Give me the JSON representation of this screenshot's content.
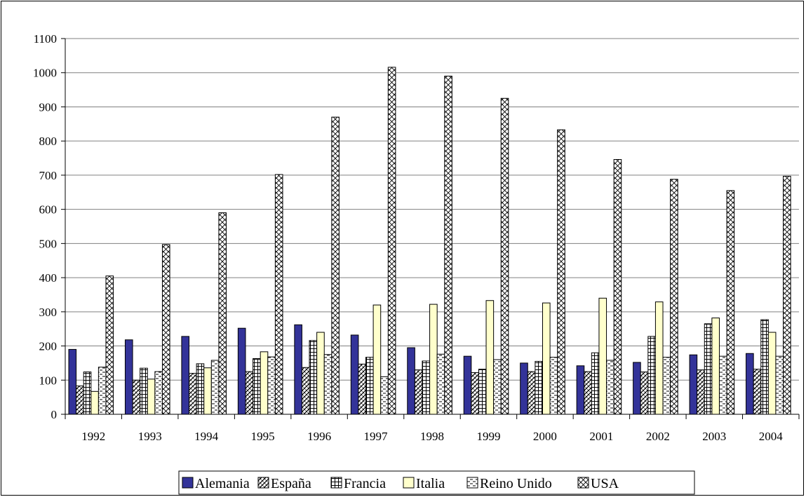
{
  "chart_data": {
    "type": "bar",
    "title": "",
    "xlabel": "",
    "ylabel": "",
    "ylim": [
      0,
      1100
    ],
    "yticks": [
      0,
      100,
      200,
      300,
      400,
      500,
      600,
      700,
      800,
      900,
      1000,
      1100
    ],
    "grid": "horizontal",
    "legend_position": "bottom",
    "categories": [
      "1992",
      "1993",
      "1994",
      "1995",
      "1996",
      "1997",
      "1998",
      "1999",
      "2000",
      "2001",
      "2002",
      "2003",
      "2004"
    ],
    "series": [
      {
        "name": "Alemania",
        "color": "#333399",
        "pattern": "solid",
        "values": [
          190,
          218,
          228,
          252,
          262,
          232,
          195,
          170,
          150,
          142,
          152,
          174,
          178
        ]
      },
      {
        "name": "España",
        "color": "#ffffff",
        "pattern": "dense-hatch",
        "values": [
          83,
          100,
          120,
          125,
          137,
          147,
          130,
          122,
          125,
          125,
          124,
          130,
          132
        ]
      },
      {
        "name": "Francia",
        "color": "#ffffff",
        "pattern": "grid",
        "values": [
          124,
          135,
          148,
          163,
          216,
          167,
          156,
          132,
          155,
          180,
          228,
          265,
          277
        ]
      },
      {
        "name": "Italia",
        "color": "#ffffcc",
        "pattern": "solid",
        "values": [
          67,
          103,
          136,
          183,
          240,
          320,
          322,
          333,
          326,
          340,
          329,
          282,
          240
        ]
      },
      {
        "name": "Reino Unido",
        "color": "#ffffff",
        "pattern": "dashes",
        "values": [
          138,
          125,
          158,
          168,
          175,
          110,
          176,
          160,
          167,
          158,
          167,
          170,
          170
        ]
      },
      {
        "name": "USA",
        "color": "#ffffff",
        "pattern": "crosshatch",
        "values": [
          405,
          497,
          590,
          702,
          870,
          1016,
          990,
          925,
          833,
          746,
          688,
          655,
          697
        ]
      }
    ]
  }
}
